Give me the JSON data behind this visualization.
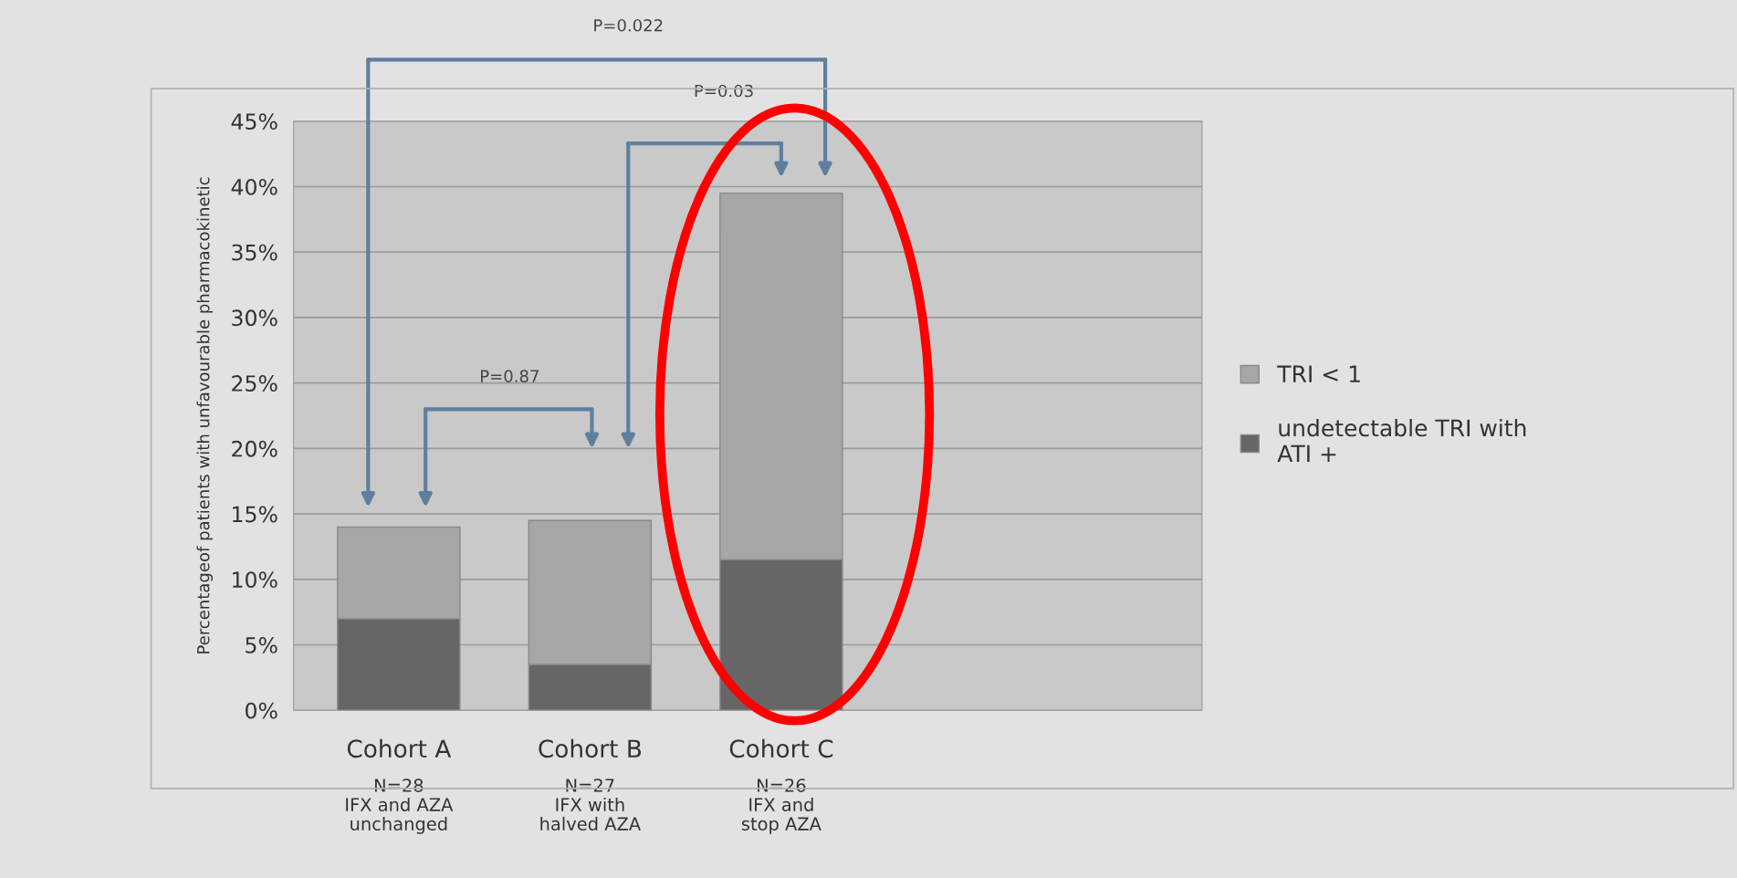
{
  "chart_data": {
    "type": "bar",
    "stacked": true,
    "ylabel": "Percentageof patients with unfavourable pharmacokinetic",
    "categories": [
      "Cohort A\nN=28\nIFX and AZA\nunchanged",
      "Cohort B\nN=27\nIFX with\nhalved AZA",
      "Cohort C\nN=26\nIFX and\nstop AZA"
    ],
    "series": [
      {
        "name": "undetectable TRI with\nATI +",
        "color": "#666666",
        "values": [
          7,
          3.5,
          11.5
        ]
      },
      {
        "name": "TRI < 1",
        "color": "#a6a6a6",
        "values": [
          7,
          11,
          28
        ]
      }
    ],
    "ylim": [
      0,
      45
    ],
    "yticks": [
      {
        "value": 0,
        "label": "0%"
      },
      {
        "value": 5,
        "label": "5%"
      },
      {
        "value": 10,
        "label": "10%"
      },
      {
        "value": 15,
        "label": "15%"
      },
      {
        "value": 20,
        "label": "20%"
      },
      {
        "value": 25,
        "label": "25%"
      },
      {
        "value": 30,
        "label": "30%"
      },
      {
        "value": 35,
        "label": "35%"
      },
      {
        "value": 40,
        "label": "40%"
      },
      {
        "value": 45,
        "label": "45%"
      }
    ],
    "grid": "y",
    "legend": "right",
    "annotations": [
      "P=0.87",
      "P=0.03",
      "P=0.022"
    ]
  }
}
